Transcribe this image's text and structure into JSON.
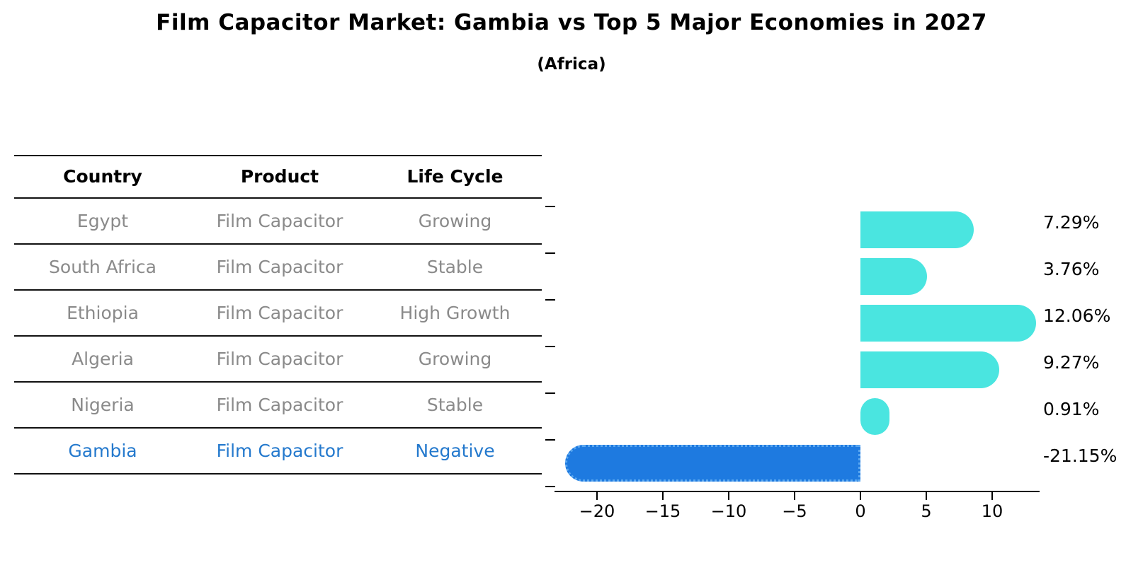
{
  "page": {
    "title": "Film Capacitor Market: Gambia vs Top 5 Major Economies in 2027",
    "subtitle": "(Africa)"
  },
  "table": {
    "headers": [
      "Country",
      "Product",
      "Life Cycle"
    ],
    "rows": [
      {
        "country": "Egypt",
        "product": "Film Capacitor",
        "life_cycle": "Growing",
        "highlighted": false
      },
      {
        "country": "South Africa",
        "product": "Film Capacitor",
        "life_cycle": "Stable",
        "highlighted": false
      },
      {
        "country": "Ethiopia",
        "product": "Film Capacitor",
        "life_cycle": "High Growth",
        "highlighted": false
      },
      {
        "country": "Algeria",
        "product": "Film Capacitor",
        "life_cycle": "Growing",
        "highlighted": false
      },
      {
        "country": "Nigeria",
        "product": "Film Capacitor",
        "life_cycle": "Stable",
        "highlighted": false
      },
      {
        "country": "Gambia",
        "product": "Film Capacitor",
        "life_cycle": "Negative",
        "highlighted": true
      }
    ],
    "text_color": "#8a8a8a",
    "highlight_text_color": "#2479cd"
  },
  "chart_data": {
    "type": "bar",
    "orientation": "horizontal",
    "title": "Film Capacitor Market: Gambia vs Top 5 Major Economies in 2027",
    "subtitle": "(Africa)",
    "categories": [
      "Egypt",
      "South Africa",
      "Ethiopia",
      "Algeria",
      "Nigeria",
      "Gambia"
    ],
    "values": [
      7.29,
      3.76,
      12.06,
      9.27,
      0.91,
      -21.15
    ],
    "value_labels": [
      "7.29%",
      "3.76%",
      "12.06%",
      "9.27%",
      "0.91%",
      "-21.15%"
    ],
    "x_ticks": [
      -20,
      -15,
      -10,
      -5,
      0,
      5,
      10
    ],
    "x_tick_labels": [
      "−20",
      "−15",
      "−10",
      "−5",
      "0",
      "5",
      "10"
    ],
    "xlim": [
      -23.2,
      13.6
    ],
    "xlabel": "",
    "ylabel": "",
    "grid": false,
    "legend": null,
    "bar_color": "#4ae5e0",
    "highlight_bar_color": "#1e7ae0",
    "highlight_index": 5,
    "highlight_category": "Gambia",
    "highlight_style": "dotted-border"
  }
}
